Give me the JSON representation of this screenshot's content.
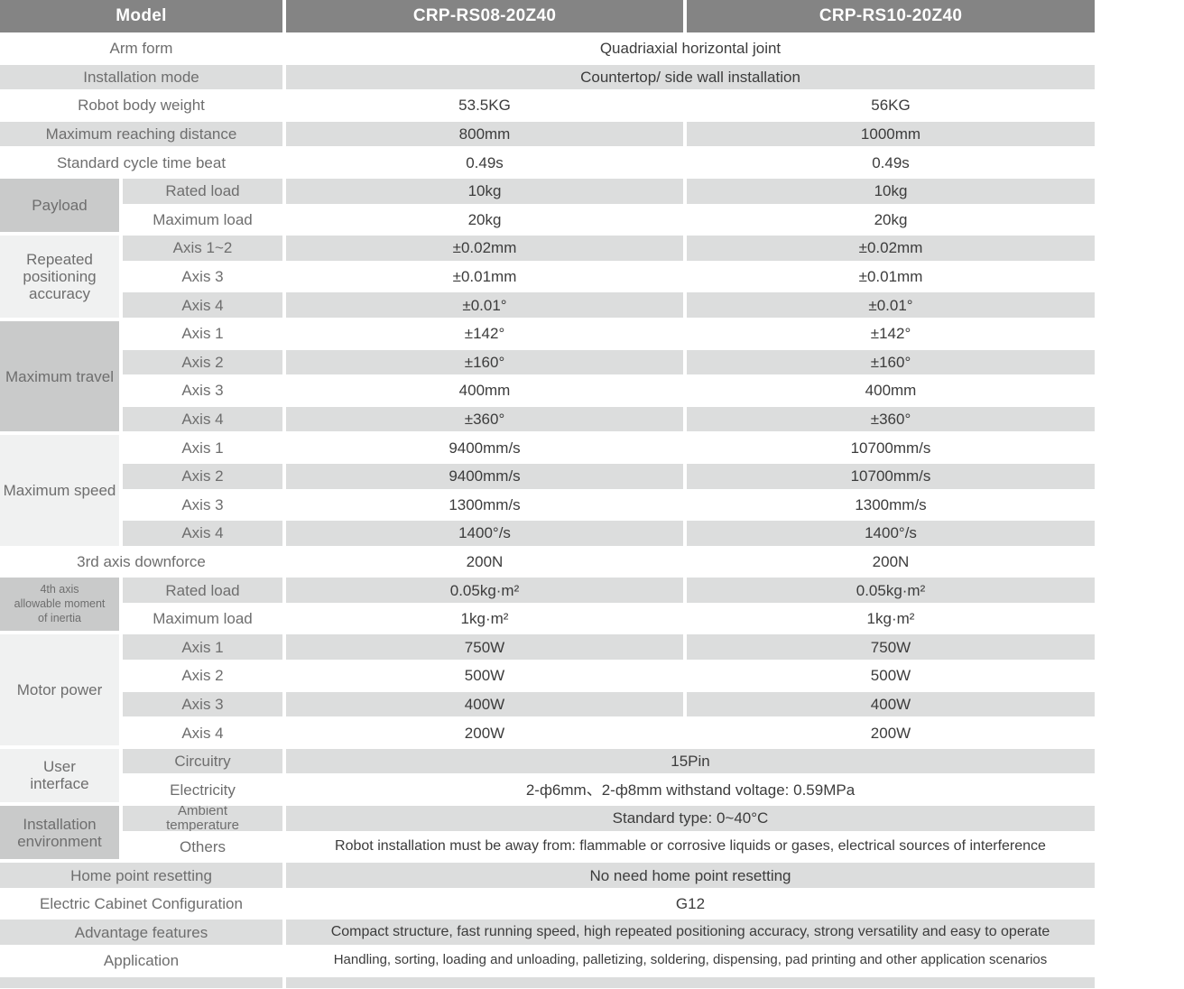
{
  "table": {
    "colors": {
      "header_bg": "#848484",
      "header_text": "#ffffff",
      "stripe_bg": "#dcdddd",
      "group_dark_bg": "#c9caca",
      "group_light_bg": "#f0f1f1",
      "label_text": "#6e6e6e",
      "value_text": "#3c3c3c"
    },
    "header": {
      "model_label": "Model",
      "model1": "CRP-RS08-20Z40",
      "model2": "CRP-RS10-20Z40"
    },
    "rows": [
      {
        "shade": "white",
        "label": "Arm form",
        "value": "Quadriaxial horizontal joint"
      },
      {
        "shade": "gray",
        "label": "Installation mode",
        "value": "Countertop/ side wall installation"
      },
      {
        "shade": "white",
        "label": "Robot body weight",
        "v1": "53.5KG",
        "v2": "56KG"
      },
      {
        "shade": "gray",
        "label": "Maximum reaching distance",
        "v1": "800mm",
        "v2": "1000mm"
      },
      {
        "shade": "white",
        "label": "Standard cycle time beat",
        "v1": "0.49s",
        "v2": "0.49s"
      },
      {
        "group": "Payload",
        "group_shade": "dark",
        "sub": [
          {
            "shade": "gray",
            "label": "Rated load",
            "v1": "10kg",
            "v2": "10kg"
          },
          {
            "shade": "white",
            "label": "Maximum load",
            "v1": "20kg",
            "v2": "20kg"
          }
        ]
      },
      {
        "group": "Repeated\npositioning\naccuracy",
        "group_shade": "light",
        "sub": [
          {
            "shade": "gray",
            "label": "Axis 1~2",
            "v1": "±0.02mm",
            "v2": "±0.02mm"
          },
          {
            "shade": "white",
            "label": "Axis 3",
            "v1": "±0.01mm",
            "v2": "±0.01mm"
          },
          {
            "shade": "gray",
            "label": "Axis 4",
            "v1": "±0.01°",
            "v2": "±0.01°"
          }
        ]
      },
      {
        "group": "Maximum travel",
        "group_shade": "dark",
        "sub": [
          {
            "shade": "white",
            "label": "Axis 1",
            "v1": "±142°",
            "v2": "±142°"
          },
          {
            "shade": "gray",
            "label": "Axis 2",
            "v1": "±160°",
            "v2": "±160°"
          },
          {
            "shade": "white",
            "label": "Axis 3",
            "v1": "400mm",
            "v2": "400mm"
          },
          {
            "shade": "gray",
            "label": "Axis 4",
            "v1": "±360°",
            "v2": "±360°"
          }
        ]
      },
      {
        "group": "Maximum speed",
        "group_shade": "light",
        "sub": [
          {
            "shade": "white",
            "label": "Axis 1",
            "v1": "9400mm/s",
            "v2": "10700mm/s"
          },
          {
            "shade": "gray",
            "label": "Axis 2",
            "v1": "9400mm/s",
            "v2": "10700mm/s"
          },
          {
            "shade": "white",
            "label": "Axis 3",
            "v1": "1300mm/s",
            "v2": "1300mm/s"
          },
          {
            "shade": "gray",
            "label": "Axis 4",
            "v1": "1400°/s",
            "v2": "1400°/s"
          }
        ]
      },
      {
        "shade": "white",
        "label": "3rd axis downforce",
        "v1": "200N",
        "v2": "200N"
      },
      {
        "group": "4th axis\nallowable moment\nof inertia",
        "group_shade": "dark",
        "sub": [
          {
            "shade": "gray",
            "label": "Rated load",
            "v1": "0.05kg·m²",
            "v2": "0.05kg·m²"
          },
          {
            "shade": "white",
            "label": "Maximum load",
            "v1": "1kg·m²",
            "v2": "1kg·m²"
          }
        ]
      },
      {
        "group": "Motor power",
        "group_shade": "light",
        "sub": [
          {
            "shade": "gray",
            "label": "Axis 1",
            "v1": "750W",
            "v2": "750W"
          },
          {
            "shade": "white",
            "label": "Axis 2",
            "v1": "500W",
            "v2": "500W"
          },
          {
            "shade": "gray",
            "label": "Axis 3",
            "v1": "400W",
            "v2": "400W"
          },
          {
            "shade": "white",
            "label": "Axis 4",
            "v1": "200W",
            "v2": "200W"
          }
        ]
      },
      {
        "group": "User\ninterface",
        "group_shade": "light",
        "sub": [
          {
            "shade": "gray",
            "label": "Circuitry",
            "value": "15Pin"
          },
          {
            "shade": "white",
            "label": "Electricity",
            "value": "2-ф6mm、2-ф8mm withstand voltage: 0.59MPa"
          }
        ]
      },
      {
        "group": "Installation\nenvironment",
        "group_shade": "dark",
        "sub": [
          {
            "shade": "gray",
            "label": "Ambient\ntemperature",
            "value": "Standard type: 0~40°C"
          },
          {
            "shade": "white",
            "label": "Others",
            "value": "Robot installation must be away from: flammable or corrosive liquids or gases, electrical sources of interference"
          }
        ]
      },
      {
        "shade": "gray",
        "label": "Home point resetting",
        "value": "No need home point resetting"
      },
      {
        "shade": "white",
        "label": "Electric Cabinet Configuration",
        "value": "G12"
      },
      {
        "shade": "gray",
        "label": "Advantage features",
        "value": "Compact structure, fast running speed, high repeated positioning accuracy, strong versatility and easy to operate"
      },
      {
        "shade": "white",
        "label": "Application",
        "value": "Handling, sorting, loading and unloading, palletizing, soldering, dispensing, pad printing and other application scenarios"
      },
      {
        "partial": true,
        "shade": "gray"
      }
    ]
  }
}
